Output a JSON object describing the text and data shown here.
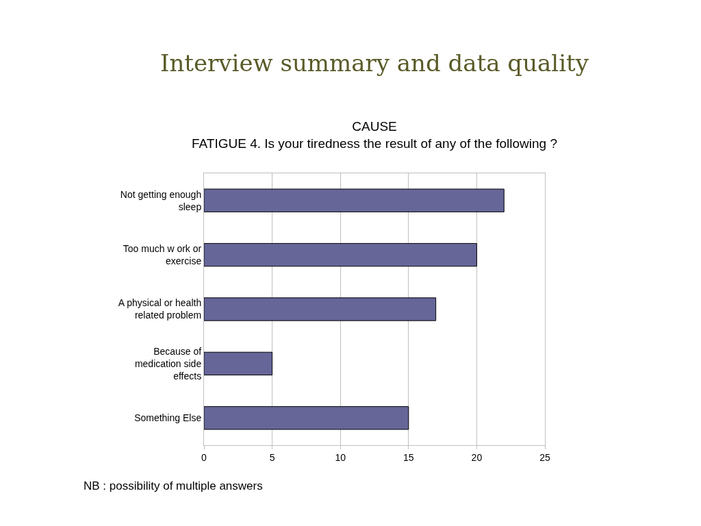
{
  "chart_data": {
    "type": "bar",
    "orientation": "horizontal",
    "title": "Interview summary and data quality",
    "subtitle": "CAUSE\nFATIGUE 4. Is your tiredness the result of any of the following ?",
    "categories": [
      "Not getting enough sleep",
      "Too much w ork or exercise",
      "A physical or health related problem",
      "Because of medication side effects",
      "Something Else"
    ],
    "values": [
      22,
      20,
      17,
      5,
      15
    ],
    "color": "#666699",
    "xlim": [
      0,
      25
    ],
    "xticks": [
      0,
      5,
      10,
      15,
      20,
      25
    ],
    "grid": "x",
    "annotations": [
      "NB : possibility of multiple answers"
    ]
  }
}
